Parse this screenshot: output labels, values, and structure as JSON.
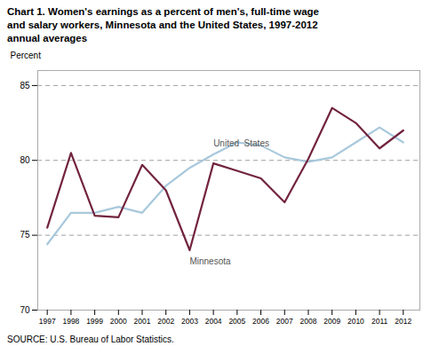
{
  "chart_data": {
    "type": "line",
    "title": "Chart 1. Women's earnings as a percent of men's, full-time wage\nand salary workers, Minnesota and the United States, 1997-2012\nannual averages",
    "ylabel": "Percent",
    "source": "SOURCE:  U.S. Bureau of Labor Statistics.",
    "x": [
      1997,
      1998,
      1999,
      2000,
      2001,
      2002,
      2003,
      2004,
      2005,
      2006,
      2007,
      2008,
      2009,
      2010,
      2011,
      2012
    ],
    "series": [
      {
        "name": "United  States",
        "color": "#A8C8DC",
        "values": [
          74.4,
          76.5,
          76.5,
          76.9,
          76.5,
          78.3,
          79.5,
          80.4,
          81.2,
          81.0,
          80.2,
          79.9,
          80.2,
          81.2,
          82.2,
          81.2
        ]
      },
      {
        "name": "Minnesota",
        "color": "#72243D",
        "values": [
          75.5,
          80.5,
          76.3,
          76.2,
          79.7,
          78.0,
          74.0,
          79.8,
          79.3,
          78.8,
          77.2,
          80.1,
          83.5,
          82.5,
          80.8,
          82.0
        ]
      }
    ],
    "xlim": [
      1996.6,
      2012.7
    ],
    "xticks": [
      1997,
      1998,
      1999,
      2000,
      2001,
      2002,
      2003,
      2004,
      2005,
      2006,
      2007,
      2008,
      2009,
      2010,
      2011,
      2012
    ],
    "ylim": [
      70,
      86
    ],
    "yticks": [
      70,
      75,
      80,
      85
    ],
    "grid": true
  }
}
